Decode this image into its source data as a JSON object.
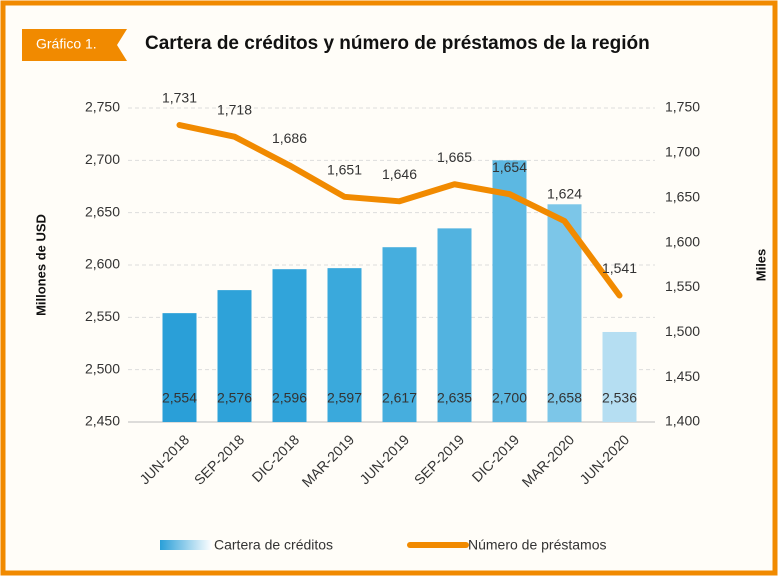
{
  "chart_data": {
    "type": "combo",
    "tag": "Gráfico 1.",
    "title": "Cartera de créditos y número de préstamos de la región",
    "ylabel": "Millones de USD",
    "y2label": "Miles",
    "categories": [
      "JUN-2018",
      "SEP-2018",
      "DIC-2018",
      "MAR-2019",
      "JUN-2019",
      "SEP-2019",
      "DIC-2019",
      "MAR-2020",
      "JUN-2020"
    ],
    "series": [
      {
        "name": "Cartera de créditos",
        "type": "bar",
        "color": "#2a9fd8",
        "colors": [
          "#2a9fd8",
          "#2ea2d9",
          "#31a4da",
          "#3aa9dc",
          "#46aede",
          "#52b3e0",
          "#5cb8e2",
          "#7cc6e8",
          "#b5def2"
        ],
        "values": [
          2554,
          2576,
          2596,
          2597,
          2617,
          2635,
          2700,
          2658,
          2536
        ],
        "value_labels": [
          "2,554",
          "2,576",
          "2,596",
          "2,597",
          "2,617",
          "2,635",
          "2,700",
          "2,658",
          "2,536"
        ]
      },
      {
        "name": "Número de préstamos",
        "type": "line",
        "color": "#f18a00",
        "axis": "y2",
        "values": [
          1731,
          1718,
          1686,
          1651,
          1646,
          1665,
          1654,
          1624,
          1541
        ],
        "value_labels": [
          "1,731",
          "1,718",
          "1,686",
          "1,651",
          "1,646",
          "1,665",
          "1,654",
          "1,624",
          "1,541"
        ]
      }
    ],
    "ylim": [
      2450,
      2750
    ],
    "yticks": [
      {
        "value": 2450,
        "label": "2,450"
      },
      {
        "value": 2500,
        "label": "2,500"
      },
      {
        "value": 2550,
        "label": "2,550"
      },
      {
        "value": 2600,
        "label": "2,600"
      },
      {
        "value": 2650,
        "label": "2,650"
      },
      {
        "value": 2700,
        "label": "2,700"
      },
      {
        "value": 2750,
        "label": "2,750"
      }
    ],
    "y2lim": [
      1400,
      1750
    ],
    "y2ticks": [
      {
        "value": 1400,
        "label": "1,400"
      },
      {
        "value": 1450,
        "label": "1,450"
      },
      {
        "value": 1500,
        "label": "1,500"
      },
      {
        "value": 1550,
        "label": "1,550"
      },
      {
        "value": 1600,
        "label": "1,600"
      },
      {
        "value": 1650,
        "label": "1,650"
      },
      {
        "value": 1700,
        "label": "1,700"
      },
      {
        "value": 1750,
        "label": "1,750"
      }
    ],
    "grid": true
  }
}
